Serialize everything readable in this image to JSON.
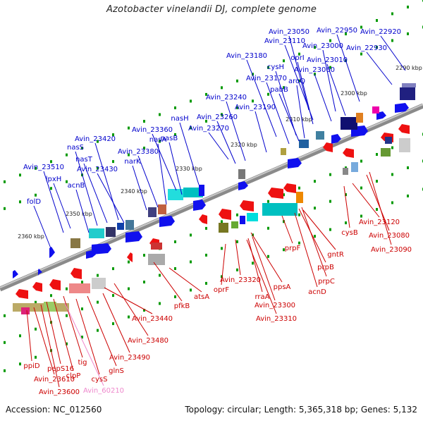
{
  "title": "Azotobacter vinelandii DJ, complete genome",
  "footer": {
    "accession": "Accession: NC_012560",
    "stats": "Topology: circular; Length: 5,365,318 bp; Genes: 5,132"
  },
  "colors": {
    "forward_label": "#0000cc",
    "reverse_label": "#cc0000",
    "pseudogene_label": "#ee88cc",
    "backbone": "#8a8a8a",
    "tick": "#009900"
  },
  "scale_ticks": [
    "2290 kbp",
    "2300 kbp",
    "2310 kbp",
    "2320 kbp",
    "2330 kbp",
    "2340 kbp",
    "2350 kbp",
    "2360 kbp"
  ],
  "forward_genes": [
    "Avin_23050",
    "Avin_22950",
    "Avin_23110",
    "Avin_22920",
    "Avin_23000",
    "Avin_22930",
    "Avin_23180",
    "oprI",
    "Avin_23010",
    "cysH",
    "Avin_23060",
    "aroQ",
    "Avin_23170",
    "pabB",
    "Avin_23240",
    "Avin_23190",
    "nasH",
    "Avin_23260",
    "Avin_23270",
    "Avin_23360",
    "nasA",
    "nasB",
    "Avin_23420",
    "nasS",
    "Avin_23380",
    "nasT",
    "narK",
    "Avin_23430",
    "Avin_23510",
    "lpxH",
    "acnB",
    "folD"
  ],
  "reverse_genes": [
    "cysB",
    "Avin_23120",
    "Avin_23080",
    "Avin_23090",
    "gntR",
    "prpF",
    "prpB",
    "prpC",
    "acnD",
    "ppsA",
    "Avin_23320",
    "rraA",
    "Avin_23300",
    "oprF",
    "Avin_23310",
    "atsA",
    "pfkB",
    "Avin_23440",
    "Avin_23480",
    "Avin_23490",
    "glnS",
    "cysS",
    "tig",
    "clpP",
    "pepS16",
    "ppiD",
    "Avin_23610",
    "Avin_23600"
  ],
  "pseudo_genes": [
    "Avin_60210"
  ]
}
